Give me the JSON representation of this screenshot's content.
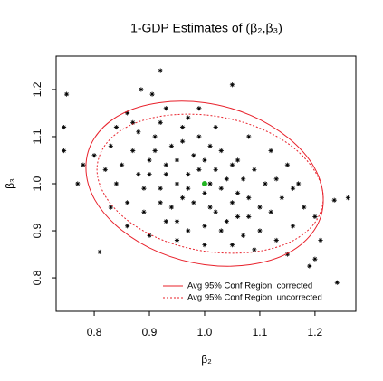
{
  "chart_data": {
    "type": "scatter",
    "title": "1-GDP Estimates of (β₂,β₃)",
    "x_label": "β₂",
    "y_label": "β₃",
    "xlim": [
      0.731,
      1.274
    ],
    "ylim": [
      0.729,
      1.271
    ],
    "xticks": [
      0.8,
      0.9,
      {
        "value": 1,
        "label": "1.0"
      },
      1.1,
      1.2
    ],
    "yticks": [
      0.8,
      0.9,
      {
        "value": 1,
        "label": "1.0"
      },
      1.1,
      1.2
    ],
    "grid": false,
    "legend": "bottom-right",
    "points": {
      "color": "#000000",
      "x": [
        0.75,
        0.92,
        0.745,
        0.745,
        0.77,
        1.24,
        1.26,
        1.235,
        0.81,
        1.05,
        0.885,
        0.905,
        1.2,
        1.19,
        0.99,
        0.95,
        0.97,
        1.0,
        1.03,
        0.93,
        0.96,
        1.02,
        1.05,
        0.9,
        0.88,
        0.92,
        0.98,
        1.01,
        1.06,
        1.08,
        0.94,
        0.91,
        0.87,
        0.85,
        0.84,
        0.86,
        0.89,
        0.93,
        0.97,
        1.0,
        1.04,
        1.07,
        1.1,
        1.12,
        1.14,
        1.11,
        1.09,
        1.06,
        1.03,
        0.99,
        0.96,
        0.92,
        0.88,
        0.83,
        0.82,
        0.83,
        0.86,
        0.9,
        0.95,
        1.0,
        1.05,
        1.09,
        1.13,
        1.16,
        1.18,
        1.17,
        1.15,
        1.12,
        1.08,
        1.02,
        0.97,
        0.93,
        0.95,
        0.99,
        1.01,
        1.04,
        0.98,
        0.94,
        1.02,
        1.06,
        1.08,
        0.91,
        0.89,
        0.96,
        1.0,
        1.03,
        0.95,
        0.87,
        0.8,
        0.78,
        1.2,
        1.21,
        1.15,
        0.93,
        0.86,
        1.1,
        0.97,
        1.05,
        0.92,
        1.13,
        1.16,
        0.84,
        0.9,
        1.01,
        1.07
      ],
      "y": [
        1.19,
        1.24,
        1.12,
        1.07,
        1.0,
        0.79,
        0.97,
        0.965,
        0.855,
        1.21,
        1.2,
        1.19,
        0.84,
        0.825,
        1.16,
        1.0,
        1.02,
        0.98,
        0.99,
        1.04,
        0.97,
        1.03,
        0.96,
        1.05,
        1.02,
        0.99,
        1.06,
        0.95,
        0.98,
        0.93,
        1.08,
        1.1,
        1.07,
        1.04,
        1.0,
        0.96,
        0.94,
        0.92,
        0.9,
        0.91,
        0.92,
        0.89,
        0.9,
        0.94,
        0.97,
        1.0,
        1.03,
        1.05,
        1.07,
        1.1,
        1.12,
        1.13,
        1.11,
        1.08,
        1.03,
        0.95,
        0.91,
        0.89,
        0.88,
        0.87,
        0.87,
        0.86,
        0.88,
        0.91,
        0.95,
        1.0,
        1.04,
        1.07,
        1.1,
        1.12,
        1.14,
        1.02,
        1.05,
        1.03,
        1.0,
        1.01,
        0.96,
        0.95,
        0.94,
        0.93,
        0.97,
        1.07,
        0.99,
        1.09,
        1.05,
        0.9,
        0.92,
        1.13,
        1.06,
        1.04,
        0.93,
        0.88,
        0.85,
        1.16,
        1.15,
        0.95,
        0.99,
        1.04,
        0.96,
        1.01,
        0.99,
        1.12,
        1.02,
        1.08,
        1.01
      ]
    },
    "center": {
      "x": 1,
      "y": 1,
      "color": "#22b522"
    },
    "series": [
      {
        "name": "Avg 95% Conf Region, corrected",
        "color": "#e8202a",
        "dash": "solid",
        "x": [
          1.215,
          1.199,
          1.152,
          1.082,
          1.0,
          0.918,
          0.848,
          0.801,
          0.785,
          0.801,
          0.848,
          0.918,
          1.0,
          1.082,
          1.152,
          1.199
        ],
        "y": [
          0.965,
          1.034,
          1.097,
          1.146,
          1.172,
          1.172,
          1.147,
          1.098,
          1.035,
          0.966,
          0.903,
          0.854,
          0.828,
          0.828,
          0.853,
          0.902
        ]
      },
      {
        "name": "Avg 95% Conf Region, uncorrected",
        "color": "#e8202a",
        "dash": "dotted",
        "x": [
          1.215,
          1.199,
          1.155,
          1.089,
          1.01,
          0.931,
          0.865,
          0.821,
          0.805,
          0.821,
          0.865,
          0.931,
          1.01,
          1.089,
          1.155,
          1.199
        ],
        "y": [
          0.97,
          1.028,
          1.082,
          1.123,
          1.145,
          1.145,
          1.124,
          1.084,
          1.03,
          0.972,
          0.918,
          0.877,
          0.855,
          0.855,
          0.876,
          0.916
        ]
      }
    ]
  }
}
